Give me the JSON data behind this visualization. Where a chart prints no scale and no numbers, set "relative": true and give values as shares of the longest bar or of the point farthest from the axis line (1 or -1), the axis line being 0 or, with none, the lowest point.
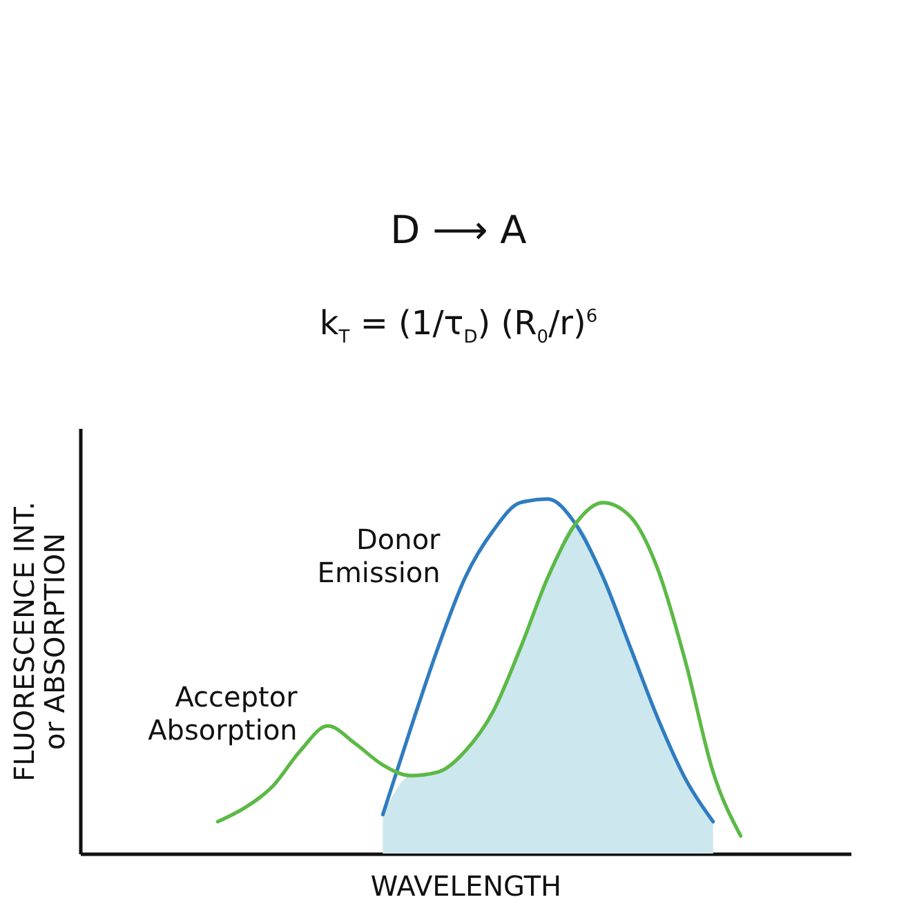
{
  "chart_data": {
    "type": "line",
    "relative": true,
    "xlabel": "WAVELENGTH",
    "ylabel": "FLUORESCENCE INT. or ABSORPTION",
    "legend": false,
    "grid": false,
    "annotations": [
      "D ⟶ A",
      "k$_{T}$ = (1/τ$_{D}$) (R$_{0}$/r)$^{6}$"
    ],
    "categories": [
      null,
      null,
      null,
      null,
      null,
      null,
      null,
      null,
      null,
      null,
      null,
      null,
      null,
      null,
      null,
      null,
      null,
      null,
      null,
      null,
      null,
      null,
      null,
      null,
      null,
      null,
      null,
      null,
      null
    ],
    "series": [
      {
        "type": "area",
        "color": "#cce7ee",
        "values": [
          null,
          null,
          null,
          null,
          null,
          null,
          null,
          null,
          null,
          null,
          null,
          0.11,
          0.22,
          0.23,
          0.29,
          0.4,
          0.58,
          0.78,
          0.93,
          0.78,
          0.58,
          0.38,
          0.21,
          0.09,
          null,
          null,
          null,
          null,
          null
        ]
      },
      {
        "name": "Donor Emission",
        "color": "#2f7cc0",
        "values": [
          null,
          null,
          null,
          null,
          null,
          null,
          null,
          null,
          null,
          null,
          null,
          0.11,
          0.35,
          0.58,
          0.78,
          0.91,
          0.99,
          1.0,
          0.93,
          0.78,
          0.58,
          0.38,
          0.21,
          0.09,
          null,
          null,
          null,
          null,
          null
        ]
      },
      {
        "name": "Acceptor Absorption",
        "color": "#5cb946",
        "values": [
          null,
          null,
          null,
          null,
          null,
          0.09,
          0.13,
          0.19,
          0.29,
          0.36,
          0.31,
          0.25,
          0.22,
          0.23,
          0.29,
          0.4,
          0.58,
          0.78,
          0.93,
          0.99,
          0.95,
          0.8,
          0.54,
          0.23,
          0.05,
          null,
          null,
          null,
          null
        ]
      }
    ]
  }
}
